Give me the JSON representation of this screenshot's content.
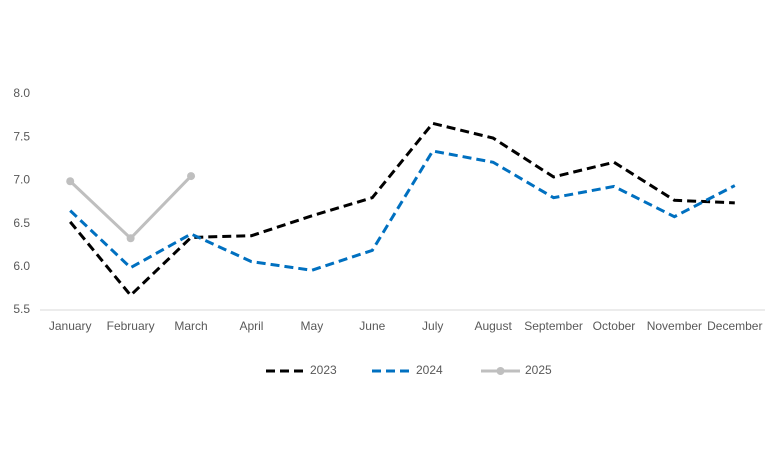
{
  "chart_data": {
    "type": "line",
    "categories": [
      "January",
      "February",
      "March",
      "April",
      "May",
      "June",
      "July",
      "August",
      "September",
      "October",
      "November",
      "December"
    ],
    "series": [
      {
        "name": "2023",
        "color": "#000000",
        "style": "dashed",
        "markers": false,
        "values": [
          6.52,
          5.67,
          6.34,
          6.36,
          6.59,
          6.8,
          7.66,
          7.49,
          7.04,
          7.21,
          6.77,
          6.74
        ]
      },
      {
        "name": "2024",
        "color": "#0070c0",
        "style": "dashed",
        "markers": false,
        "values": [
          6.65,
          5.99,
          6.38,
          6.06,
          5.96,
          6.19,
          7.34,
          7.21,
          6.8,
          6.93,
          6.58,
          6.94
        ]
      },
      {
        "name": "2025",
        "color": "#bfbfbf",
        "style": "solid",
        "markers": true,
        "values": [
          6.99,
          6.33,
          7.05,
          null,
          null,
          null,
          null,
          null,
          null,
          null,
          null,
          null
        ]
      }
    ],
    "ylim": [
      5.5,
      8.0
    ],
    "yticks": [
      5.5,
      {
        "value": 6,
        "label": "6.0"
      },
      6.5,
      {
        "value": 7,
        "label": "7.0"
      },
      7.5,
      {
        "value": 8,
        "label": "8.0"
      }
    ],
    "grid": false,
    "legend": "bottom"
  }
}
